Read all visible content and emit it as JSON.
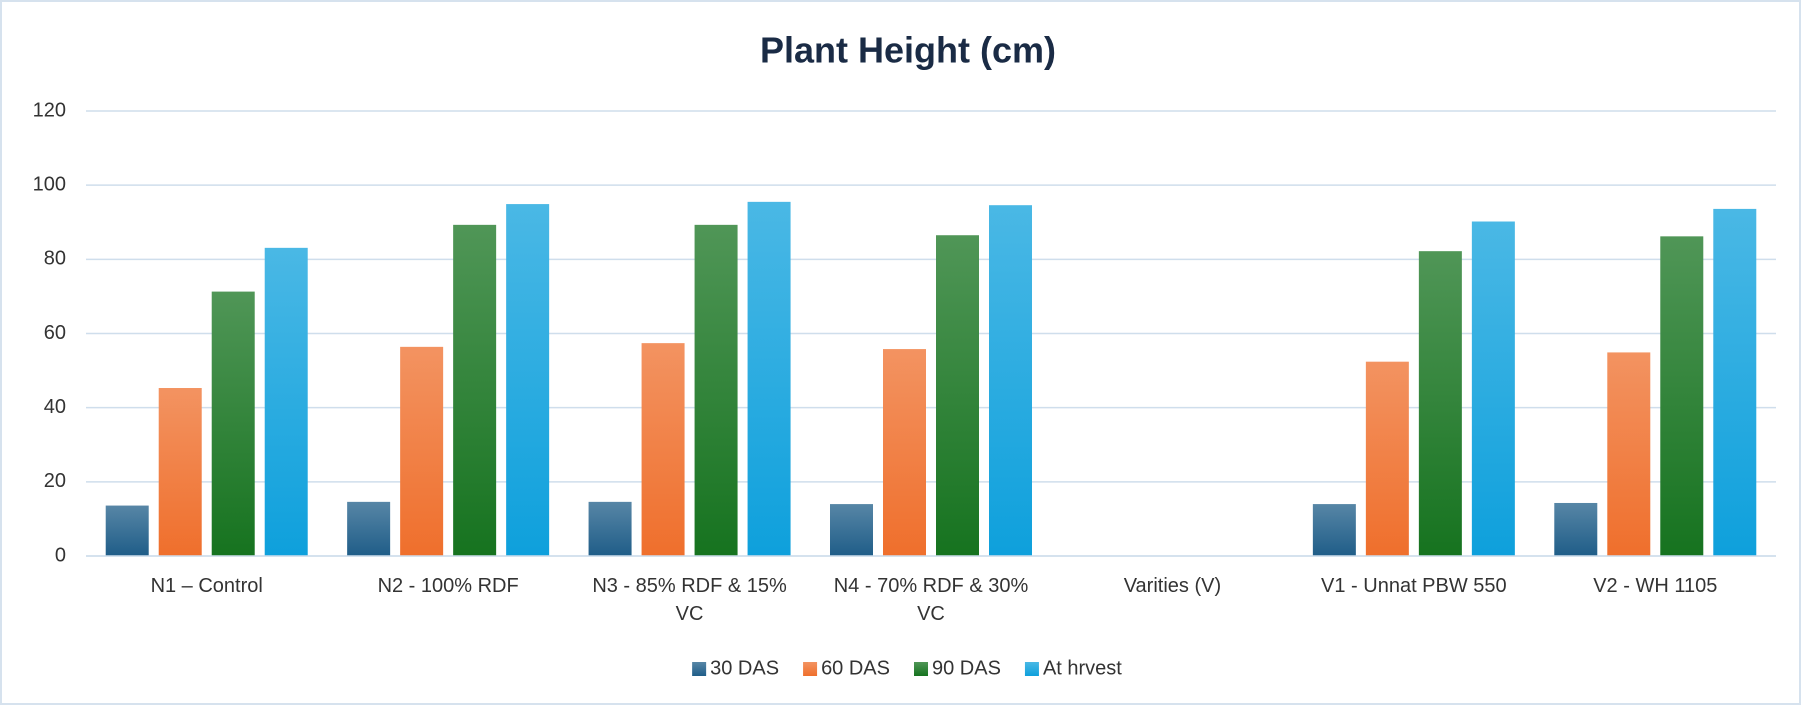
{
  "chart_data": {
    "type": "bar",
    "title": "Plant Height (cm)",
    "categories": [
      "N1 – Control",
      "N2 - 100% RDF",
      "N3 - 85% RDF & 15% VC",
      "N4 - 70% RDF & 30% VC",
      "Varities (V)",
      "V1 - Unnat PBW 550",
      "V2 - WH 1105"
    ],
    "series": [
      {
        "name": "30 DAS",
        "color": "#1f5d88",
        "values": [
          13.6,
          14.6,
          14.6,
          14.0,
          null,
          14.0,
          14.3
        ]
      },
      {
        "name": "60 DAS",
        "color": "#ef6f2c",
        "values": [
          45.3,
          56.4,
          57.4,
          55.8,
          null,
          52.4,
          54.9
        ]
      },
      {
        "name": "90 DAS",
        "color": "#16731f",
        "values": [
          71.3,
          89.3,
          89.3,
          86.5,
          null,
          82.2,
          86.2
        ]
      },
      {
        "name": "At hrvest",
        "color": "#0ea0dc",
        "values": [
          83.1,
          94.9,
          95.5,
          94.6,
          null,
          90.2,
          93.6
        ]
      }
    ],
    "ylim": [
      0,
      120
    ],
    "yticks": [
      0,
      20,
      40,
      60,
      80,
      100,
      120
    ],
    "grid": true,
    "legend": "bottom"
  }
}
